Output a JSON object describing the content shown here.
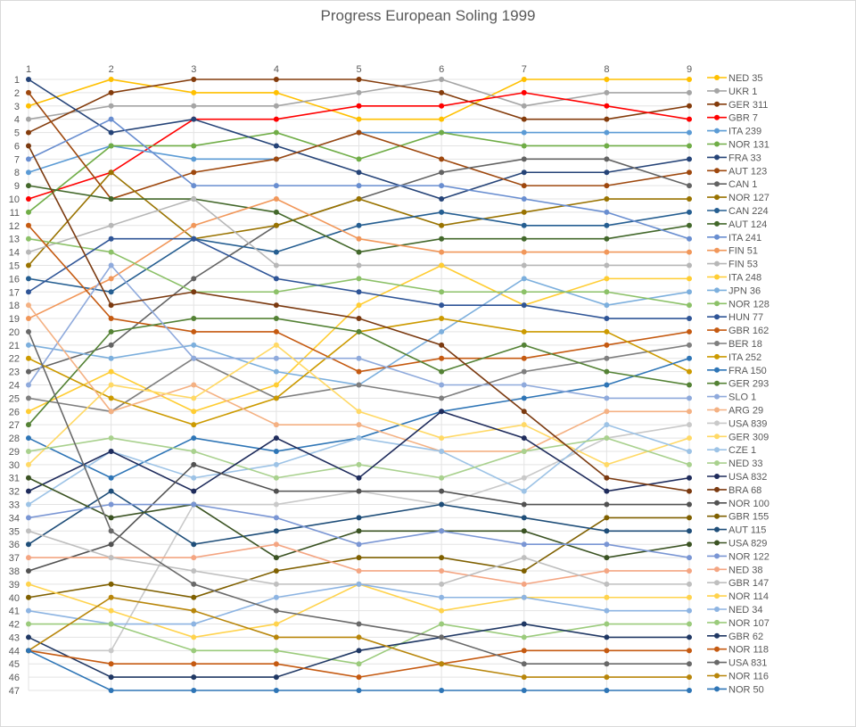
{
  "chart_data": {
    "type": "line",
    "title": "Progress European Soling 1999",
    "xlabel": "",
    "ylabel": "",
    "categories": [
      "1",
      "2",
      "3",
      "4",
      "5",
      "6",
      "7",
      "8",
      "9"
    ],
    "y_ticks": [
      1,
      2,
      3,
      4,
      5,
      6,
      7,
      8,
      9,
      10,
      11,
      12,
      13,
      14,
      15,
      16,
      17,
      18,
      19,
      20,
      21,
      22,
      23,
      24,
      25,
      26,
      27,
      28,
      29,
      30,
      31,
      32,
      33,
      34,
      35,
      36,
      37,
      38,
      39,
      40,
      41,
      42,
      43,
      44,
      45,
      46,
      47
    ],
    "ylim": [
      1,
      47
    ],
    "y_reversed": true,
    "x_axis_position": "top",
    "grid": true,
    "legend_position": "right",
    "series": [
      {
        "name": "NED 35",
        "color": "#FFC000",
        "values": [
          3,
          1,
          2,
          2,
          4,
          4,
          1,
          1,
          1
        ]
      },
      {
        "name": "UKR 1",
        "color": "#A5A5A5",
        "values": [
          4,
          3,
          3,
          3,
          2,
          1,
          3,
          2,
          2
        ]
      },
      {
        "name": "GER 311",
        "color": "#843C0C",
        "values": [
          5,
          2,
          1,
          1,
          1,
          2,
          4,
          4,
          3
        ]
      },
      {
        "name": "GBR 7",
        "color": "#FF0000",
        "values": [
          10,
          8,
          4,
          4,
          3,
          3,
          2,
          3,
          4
        ]
      },
      {
        "name": "ITA 239",
        "color": "#5B9BD5",
        "values": [
          8,
          6,
          7,
          7,
          5,
          5,
          5,
          5,
          5
        ]
      },
      {
        "name": "NOR 131",
        "color": "#70AD47",
        "values": [
          11,
          6,
          6,
          5,
          7,
          5,
          6,
          6,
          6
        ]
      },
      {
        "name": "FRA 33",
        "color": "#264478",
        "values": [
          1,
          5,
          4,
          6,
          8,
          10,
          8,
          8,
          7
        ]
      },
      {
        "name": "AUT 123",
        "color": "#9E480E",
        "values": [
          2,
          10,
          8,
          7,
          5,
          7,
          9,
          9,
          8
        ]
      },
      {
        "name": "CAN 1",
        "color": "#636363",
        "values": [
          23,
          21,
          16,
          12,
          10,
          8,
          7,
          7,
          9
        ]
      },
      {
        "name": "NOR 127",
        "color": "#997300",
        "values": [
          15,
          8,
          13,
          12,
          10,
          12,
          11,
          10,
          10
        ]
      },
      {
        "name": "CAN 224",
        "color": "#255E91",
        "values": [
          16,
          17,
          13,
          14,
          12,
          11,
          12,
          12,
          11
        ]
      },
      {
        "name": "AUT 124",
        "color": "#43682B",
        "values": [
          9,
          10,
          10,
          11,
          14,
          13,
          13,
          13,
          12
        ]
      },
      {
        "name": "ITA 241",
        "color": "#698ED0",
        "values": [
          7,
          4,
          9,
          9,
          9,
          9,
          10,
          11,
          13
        ]
      },
      {
        "name": "FIN 51",
        "color": "#F1975A",
        "values": [
          19,
          16,
          12,
          10,
          13,
          14,
          14,
          14,
          14
        ]
      },
      {
        "name": "FIN 53",
        "color": "#B7B7B7",
        "values": [
          14,
          12,
          10,
          15,
          15,
          15,
          15,
          15,
          15
        ]
      },
      {
        "name": "ITA 248",
        "color": "#FFCD33",
        "values": [
          26,
          23,
          26,
          24,
          18,
          15,
          18,
          16,
          16
        ]
      },
      {
        "name": "JPN 36",
        "color": "#7CAFDD",
        "values": [
          21,
          22,
          21,
          23,
          24,
          20,
          16,
          18,
          17
        ]
      },
      {
        "name": "NOR 128",
        "color": "#8CC168",
        "values": [
          13,
          14,
          17,
          17,
          16,
          17,
          17,
          17,
          18
        ]
      },
      {
        "name": "HUN 77",
        "color": "#2F5597",
        "values": [
          17,
          13,
          13,
          16,
          17,
          18,
          18,
          19,
          19
        ]
      },
      {
        "name": "GBR 162",
        "color": "#C55A11",
        "values": [
          12,
          19,
          20,
          20,
          23,
          22,
          22,
          21,
          20
        ]
      },
      {
        "name": "BER 18",
        "color": "#7F7F7F",
        "values": [
          25,
          26,
          22,
          25,
          24,
          25,
          23,
          22,
          21
        ]
      },
      {
        "name": "ITA 252",
        "color": "#CC9A00",
        "values": [
          22,
          25,
          27,
          25,
          20,
          19,
          20,
          20,
          23
        ]
      },
      {
        "name": "FRA 150",
        "color": "#2E75B6",
        "values": [
          28,
          31,
          28,
          29,
          28,
          26,
          25,
          24,
          22
        ]
      },
      {
        "name": "GER 293",
        "color": "#548235",
        "values": [
          27,
          20,
          19,
          19,
          20,
          23,
          21,
          23,
          24
        ]
      },
      {
        "name": "SLO 1",
        "color": "#8FAADC",
        "values": [
          24,
          15,
          22,
          22,
          22,
          24,
          24,
          25,
          25
        ]
      },
      {
        "name": "ARG 29",
        "color": "#F4B183",
        "values": [
          18,
          26,
          24,
          27,
          27,
          29,
          29,
          26,
          26
        ]
      },
      {
        "name": "USA 839",
        "color": "#C9C9C9",
        "values": [
          44,
          44,
          33,
          33,
          32,
          33,
          31,
          28,
          27
        ]
      },
      {
        "name": "GER 309",
        "color": "#FFD966",
        "values": [
          30,
          24,
          25,
          21,
          26,
          28,
          27,
          30,
          28
        ]
      },
      {
        "name": "CZE 1",
        "color": "#9DC3E6",
        "values": [
          33,
          29,
          31,
          30,
          28,
          29,
          32,
          27,
          29
        ]
      },
      {
        "name": "NED 33",
        "color": "#A9D18E",
        "values": [
          29,
          28,
          29,
          31,
          30,
          31,
          29,
          28,
          30
        ]
      },
      {
        "name": "USA 832",
        "color": "#1F2C5C",
        "values": [
          32,
          29,
          32,
          28,
          31,
          26,
          28,
          32,
          31
        ]
      },
      {
        "name": "BRA 68",
        "color": "#7B3A10",
        "values": [
          6,
          18,
          17,
          18,
          19,
          21,
          26,
          31,
          32
        ]
      },
      {
        "name": "NOR 100",
        "color": "#525252",
        "values": [
          38,
          36,
          30,
          32,
          32,
          32,
          33,
          33,
          33
        ]
      },
      {
        "name": "GBR 155",
        "color": "#7F6000",
        "values": [
          40,
          39,
          40,
          38,
          37,
          37,
          38,
          34,
          34
        ]
      },
      {
        "name": "AUT 115",
        "color": "#1F4E79",
        "values": [
          36,
          32,
          36,
          35,
          34,
          33,
          34,
          35,
          35
        ]
      },
      {
        "name": "USA 829",
        "color": "#3B5323",
        "values": [
          31,
          34,
          33,
          37,
          35,
          35,
          35,
          37,
          36
        ]
      },
      {
        "name": "NOR 122",
        "color": "#7A96D4",
        "values": [
          34,
          33,
          33,
          34,
          36,
          35,
          36,
          36,
          37
        ]
      },
      {
        "name": "NED 38",
        "color": "#F4A582",
        "values": [
          37,
          37,
          37,
          36,
          38,
          38,
          39,
          38,
          38
        ]
      },
      {
        "name": "GBR 147",
        "color": "#BFBFBF",
        "values": [
          35,
          37,
          38,
          39,
          39,
          39,
          37,
          39,
          39
        ]
      },
      {
        "name": "NOR 114",
        "color": "#FFD34D",
        "values": [
          39,
          41,
          43,
          42,
          39,
          41,
          40,
          40,
          40
        ]
      },
      {
        "name": "NED 34",
        "color": "#8DB4E2",
        "values": [
          41,
          42,
          42,
          40,
          39,
          40,
          40,
          41,
          41
        ]
      },
      {
        "name": "NOR 107",
        "color": "#9BCB7C",
        "values": [
          42,
          42,
          44,
          44,
          45,
          42,
          43,
          42,
          42
        ]
      },
      {
        "name": "GBR 62",
        "color": "#203864",
        "values": [
          43,
          46,
          46,
          46,
          44,
          43,
          42,
          43,
          43
        ]
      },
      {
        "name": "NOR 118",
        "color": "#C55A11",
        "values": [
          44,
          45,
          45,
          45,
          46,
          45,
          44,
          44,
          44
        ]
      },
      {
        "name": "USA 831",
        "color": "#696969",
        "values": [
          20,
          35,
          39,
          41,
          42,
          43,
          45,
          45,
          45
        ]
      },
      {
        "name": "NOR 116",
        "color": "#B8860B",
        "values": [
          44,
          40,
          41,
          43,
          43,
          45,
          46,
          46,
          46
        ]
      },
      {
        "name": "NOR 50",
        "color": "#2E75B6",
        "values": [
          44,
          47,
          47,
          47,
          47,
          47,
          47,
          47,
          47
        ]
      }
    ]
  }
}
